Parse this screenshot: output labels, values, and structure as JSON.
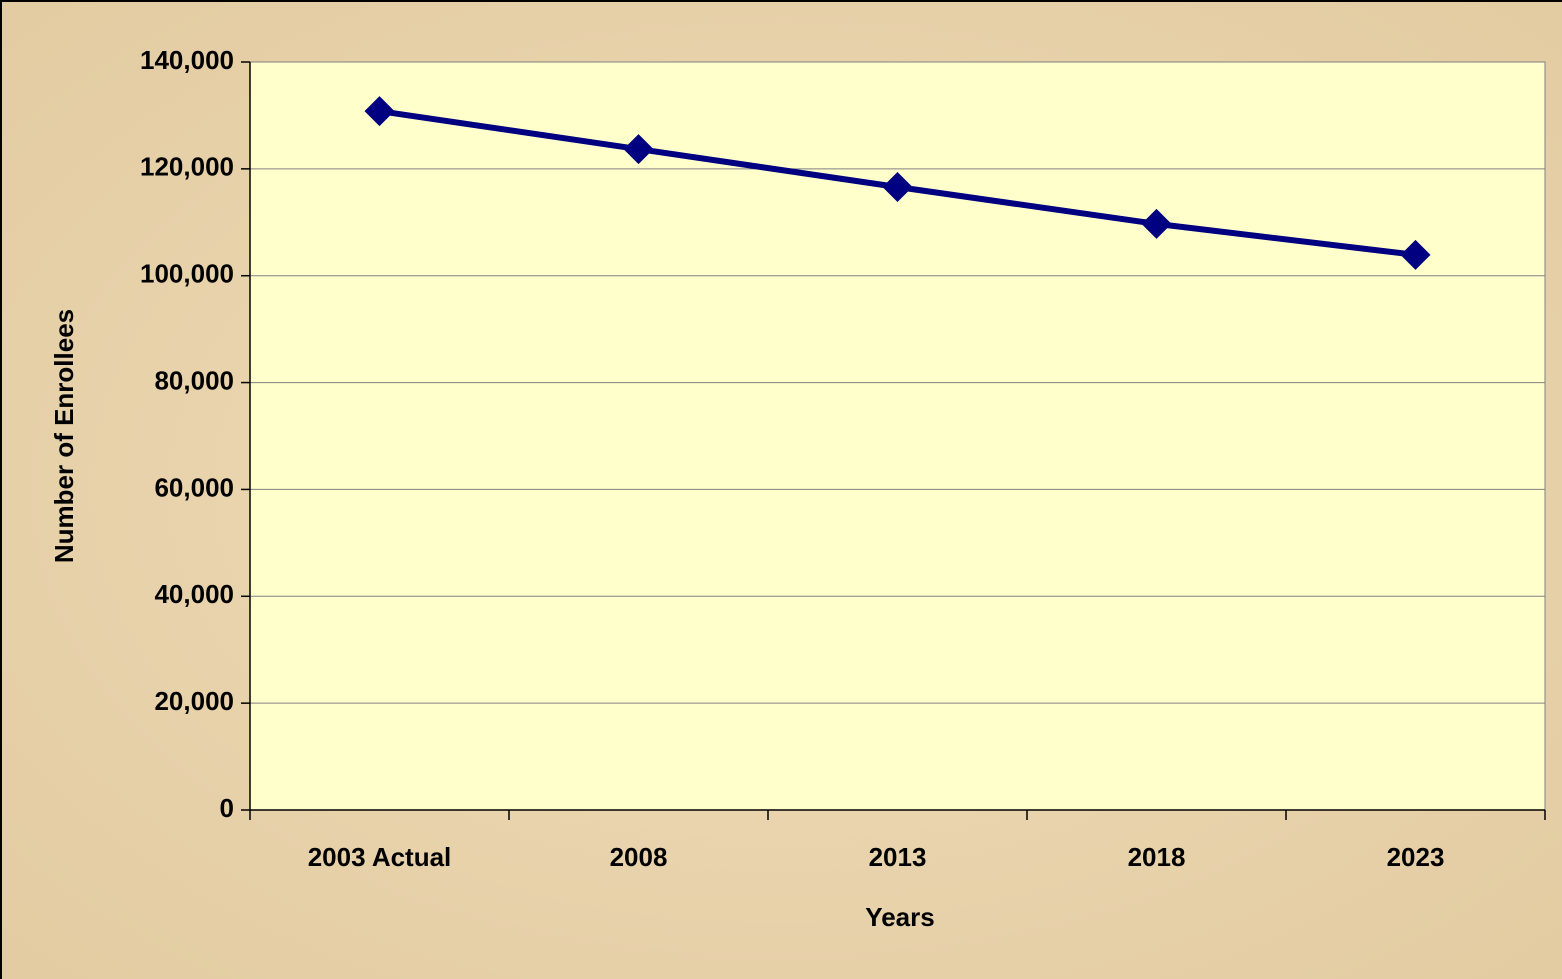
{
  "chart_data": {
    "type": "line",
    "x_label": "Years",
    "y_label": "Number of Enrollees",
    "categories": [
      "2003 Actual",
      "2008",
      "2013",
      "2018",
      "2023"
    ],
    "series": [
      {
        "name": "Enrollees",
        "color": "#000080",
        "values": [
          130800,
          123700,
          116600,
          109700,
          103900
        ]
      }
    ],
    "ylim": [
      0,
      140000
    ],
    "yticks": [
      0,
      {
        "value": 20000,
        "label": "20,000"
      },
      {
        "value": 40000,
        "label": "40,000"
      },
      {
        "value": 60000,
        "label": "60,000"
      },
      {
        "value": 80000,
        "label": "80,000"
      },
      {
        "value": 100000,
        "label": "100,000"
      },
      {
        "value": 120000,
        "label": "120,000"
      },
      {
        "value": 140000,
        "label": "140,000"
      }
    ],
    "grid": true,
    "plot_color": "#ffffcc"
  }
}
